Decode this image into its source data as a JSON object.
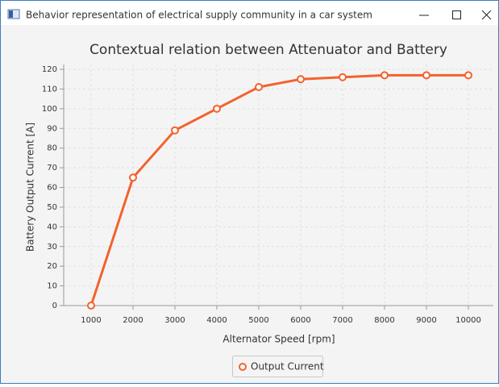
{
  "window": {
    "title": "Behavior representation of electrical supply community in a car system"
  },
  "chart_data": {
    "type": "line",
    "title": "Contextual relation between Attenuator and Battery",
    "x_label": "Alternator Speed [rpm]",
    "y_label": "Battery Output Current [A]",
    "categories": [
      "1000",
      "2000",
      "3000",
      "4000",
      "5000",
      "6000",
      "7000",
      "8000",
      "9000",
      "10000"
    ],
    "series": [
      {
        "name": "Output Current",
        "color": "#f3622d",
        "values": [
          0,
          65,
          89,
          100,
          111,
          115,
          116,
          117,
          117,
          117
        ]
      }
    ],
    "ylim": [
      0,
      120
    ],
    "yticks": [
      0,
      10,
      20,
      30,
      40,
      50,
      60,
      70,
      80,
      90,
      100,
      110,
      120
    ],
    "grid": true,
    "legend": "bottom"
  }
}
